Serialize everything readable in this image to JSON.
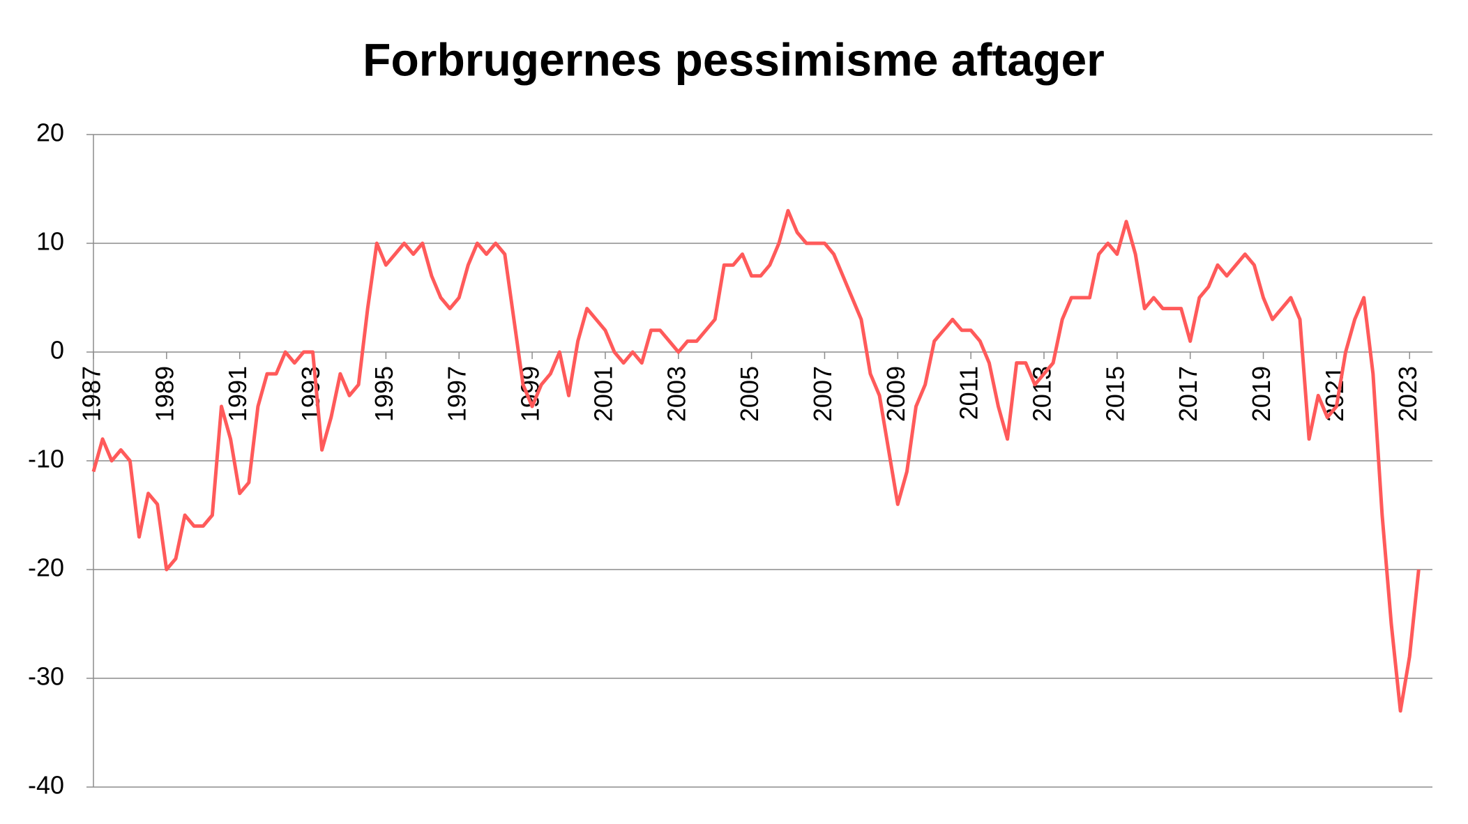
{
  "chart_data": {
    "type": "line",
    "title": "Forbrugernes pessimisme aftager",
    "categories": [
      "1987",
      null,
      null,
      null,
      null,
      null,
      null,
      null,
      "1989",
      null,
      null,
      null,
      null,
      null,
      null,
      null,
      "1991",
      null,
      null,
      null,
      null,
      null,
      null,
      null,
      "1993",
      null,
      null,
      null,
      null,
      null,
      null,
      null,
      "1995",
      null,
      null,
      null,
      null,
      null,
      null,
      null,
      "1997",
      null,
      null,
      null,
      null,
      null,
      null,
      null,
      "1999",
      null,
      null,
      null,
      null,
      null,
      null,
      null,
      "2001",
      null,
      null,
      null,
      null,
      null,
      null,
      null,
      "2003",
      null,
      null,
      null,
      null,
      null,
      null,
      null,
      "2005",
      null,
      null,
      null,
      null,
      null,
      null,
      null,
      "2007",
      null,
      null,
      null,
      null,
      null,
      null,
      null,
      "2009",
      null,
      null,
      null,
      null,
      null,
      null,
      null,
      "2011",
      null,
      null,
      null,
      null,
      null,
      null,
      null,
      "2013",
      null,
      null,
      null,
      null,
      null,
      null,
      null,
      "2015",
      null,
      null,
      null,
      null,
      null,
      null,
      null,
      "2017",
      null,
      null,
      null,
      null,
      null,
      null,
      null,
      "2019",
      null,
      null,
      null,
      null,
      null,
      null,
      null,
      "2021",
      null,
      null,
      null,
      null,
      null,
      null,
      null,
      "2023",
      null
    ],
    "series": [
      {
        "color": "#ff5a5a",
        "values": [
          -11,
          -8,
          -10,
          -9,
          -10,
          -17,
          -13,
          -14,
          -20,
          -19,
          -15,
          -16,
          -16,
          -15,
          -5,
          -8,
          -13,
          -12,
          -5,
          -2,
          -2,
          0,
          -1,
          0,
          0,
          -9,
          -6,
          -2,
          -4,
          -3,
          4,
          10,
          8,
          9,
          10,
          9,
          10,
          7,
          5,
          4,
          5,
          8,
          10,
          9,
          10,
          9,
          3,
          -3,
          -5,
          -3,
          -2,
          0,
          -4,
          1,
          4,
          3,
          2,
          0,
          -1,
          0,
          -1,
          2,
          2,
          1,
          0,
          1,
          1,
          2,
          3,
          8,
          8,
          9,
          7,
          7,
          8,
          10,
          13,
          11,
          10,
          10,
          10,
          9,
          7,
          5,
          3,
          -2,
          -4,
          -9,
          -14,
          -11,
          -5,
          -3,
          1,
          2,
          3,
          2,
          2,
          1,
          -1,
          -5,
          -8,
          -1,
          -1,
          -3,
          -2,
          -1,
          3,
          5,
          5,
          5,
          9,
          10,
          9,
          12,
          9,
          4,
          5,
          4,
          4,
          4,
          1,
          5,
          6,
          8,
          7,
          8,
          9,
          8,
          5,
          3,
          4,
          5,
          3,
          -8,
          -4,
          -6,
          -5,
          0,
          3,
          5,
          -2,
          -15,
          -25,
          -33,
          -28,
          -20
        ]
      }
    ],
    "ylim": [
      -40,
      20
    ],
    "yticks": [
      -40,
      -30,
      -20,
      -10,
      0,
      10,
      20
    ],
    "grid": true
  }
}
